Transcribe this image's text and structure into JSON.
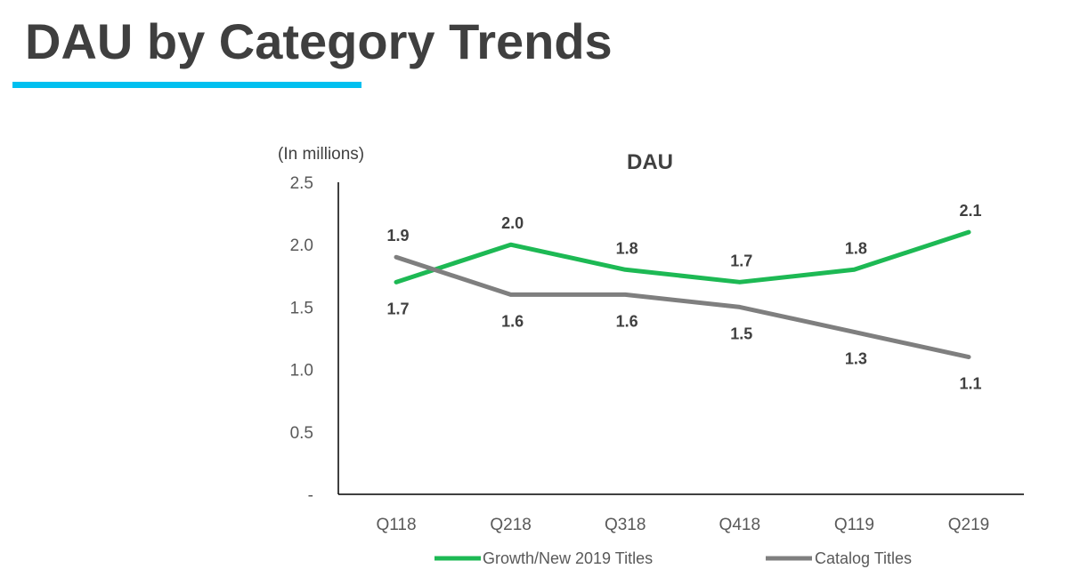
{
  "slide": {
    "title": "DAU by Category Trends",
    "accent_color": "#00c0f0"
  },
  "chart_data": {
    "type": "line",
    "title": "DAU",
    "unit_label": "(In millions)",
    "categories": [
      "Q118",
      "Q218",
      "Q318",
      "Q418",
      "Q119",
      "Q219"
    ],
    "ylim": [
      0,
      2.5
    ],
    "y_ticks": [
      {
        "value": 0,
        "label": "-"
      },
      {
        "value": 0.5,
        "label": "0.5"
      },
      {
        "value": 1.0,
        "label": "1.0"
      },
      {
        "value": 1.5,
        "label": "1.5"
      },
      {
        "value": 2.0,
        "label": "2.0"
      },
      {
        "value": 2.5,
        "label": "2.5"
      }
    ],
    "grid": false,
    "legend_position": "bottom",
    "series": [
      {
        "name": "Growth/New 2019 Titles",
        "color": "#1db954",
        "values": [
          1.7,
          2.0,
          1.8,
          1.7,
          1.8,
          2.1
        ],
        "labels": [
          "1.7",
          "2.0",
          "1.8",
          "1.7",
          "1.8",
          "2.1"
        ]
      },
      {
        "name": "Catalog Titles",
        "color": "#7f7f7f",
        "values": [
          1.9,
          1.6,
          1.6,
          1.5,
          1.3,
          1.1
        ],
        "labels": [
          "1.9",
          "1.6",
          "1.6",
          "1.5",
          "1.3",
          "1.1"
        ]
      }
    ]
  }
}
